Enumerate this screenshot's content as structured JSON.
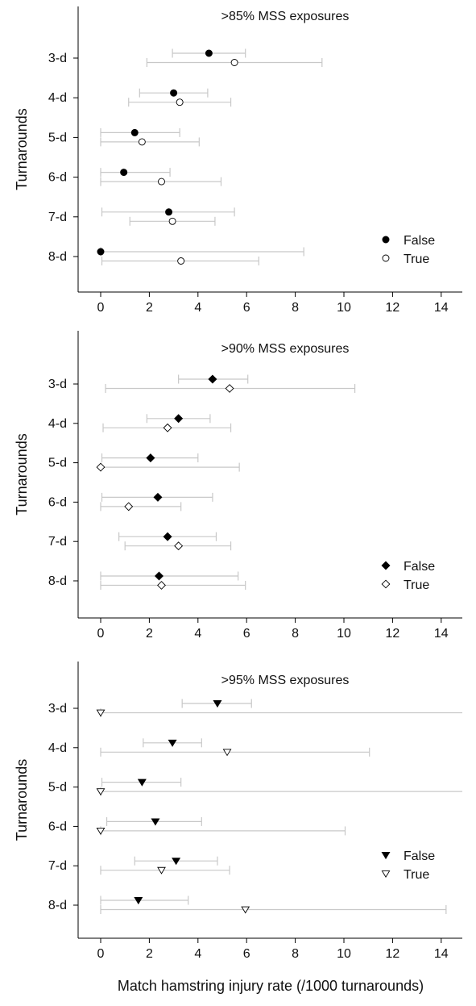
{
  "x_axis_label": "Match hamstring injury rate (/1000 turnarounds)",
  "chart_data": [
    {
      "type": "scatter",
      "title": ">85% MSS exposures",
      "ylabel": "Turnarounds",
      "xlabel": "",
      "categories": [
        "3-d",
        "4-d",
        "5-d",
        "6-d",
        "7-d",
        "8-d"
      ],
      "xlim": [
        -1,
        15
      ],
      "xticks": [
        0,
        2,
        4,
        6,
        8,
        10,
        12,
        14
      ],
      "legend_position": "bottom-right",
      "error_bars": true,
      "series": [
        {
          "name": "False",
          "marker": "circle",
          "filled": true,
          "color": "#000000",
          "values": [
            4.45,
            3.0,
            1.4,
            0.95,
            2.8,
            0.0
          ],
          "lower": [
            2.95,
            1.6,
            0.0,
            0.0,
            0.05,
            0.0
          ],
          "upper": [
            5.95,
            4.4,
            3.25,
            2.85,
            5.5,
            8.35
          ]
        },
        {
          "name": "True",
          "marker": "circle",
          "filled": false,
          "color": "#000000",
          "values": [
            5.5,
            3.25,
            1.7,
            2.5,
            2.95,
            3.3
          ],
          "lower": [
            1.9,
            1.15,
            0.0,
            0.0,
            1.2,
            0.05
          ],
          "upper": [
            9.1,
            5.35,
            4.05,
            4.95,
            4.7,
            6.5
          ]
        }
      ]
    },
    {
      "type": "scatter",
      "title": ">90% MSS exposures",
      "ylabel": "Turnarounds",
      "xlabel": "",
      "categories": [
        "3-d",
        "4-d",
        "5-d",
        "6-d",
        "7-d",
        "8-d"
      ],
      "xlim": [
        -1,
        15
      ],
      "xticks": [
        0,
        2,
        4,
        6,
        8,
        10,
        12,
        14
      ],
      "legend_position": "bottom-right",
      "error_bars": true,
      "series": [
        {
          "name": "False",
          "marker": "diamond",
          "filled": true,
          "color": "#000000",
          "values": [
            4.6,
            3.2,
            2.05,
            2.35,
            2.75,
            2.4
          ],
          "lower": [
            3.2,
            1.9,
            0.05,
            0.05,
            0.75,
            0.0
          ],
          "upper": [
            6.05,
            4.5,
            4.0,
            4.6,
            4.75,
            5.65
          ]
        },
        {
          "name": "True",
          "marker": "diamond",
          "filled": false,
          "color": "#000000",
          "values": [
            5.3,
            2.75,
            0.0,
            1.15,
            3.2,
            2.5
          ],
          "lower": [
            0.2,
            0.1,
            0.0,
            0.0,
            1.0,
            0.0
          ],
          "upper": [
            10.45,
            5.35,
            5.7,
            3.3,
            5.35,
            5.95
          ]
        }
      ]
    },
    {
      "type": "scatter",
      "title": ">95% MSS exposures",
      "ylabel": "Turnarounds",
      "xlabel": "",
      "categories": [
        "3-d",
        "4-d",
        "5-d",
        "6-d",
        "7-d",
        "8-d"
      ],
      "xlim": [
        -1,
        15
      ],
      "xticks": [
        0,
        2,
        4,
        6,
        8,
        10,
        12,
        14
      ],
      "legend_position": "bottom-right",
      "error_bars": true,
      "series": [
        {
          "name": "False",
          "marker": "triangle-down",
          "filled": true,
          "color": "#000000",
          "values": [
            4.8,
            2.95,
            1.7,
            2.25,
            3.1,
            1.55
          ],
          "lower": [
            3.35,
            1.75,
            0.05,
            0.25,
            1.4,
            0.0
          ],
          "upper": [
            6.2,
            4.15,
            3.3,
            4.15,
            4.8,
            3.6
          ]
        },
        {
          "name": "True",
          "marker": "triangle-down",
          "filled": false,
          "color": "#000000",
          "values": [
            0.0,
            5.2,
            0.0,
            0.0,
            2.5,
            5.95
          ],
          "lower": [
            0.0,
            0.0,
            0.0,
            0.0,
            0.0,
            0.0
          ],
          "upper": [
            15.0,
            11.05,
            15.0,
            10.05,
            5.3,
            14.2
          ]
        }
      ]
    }
  ]
}
